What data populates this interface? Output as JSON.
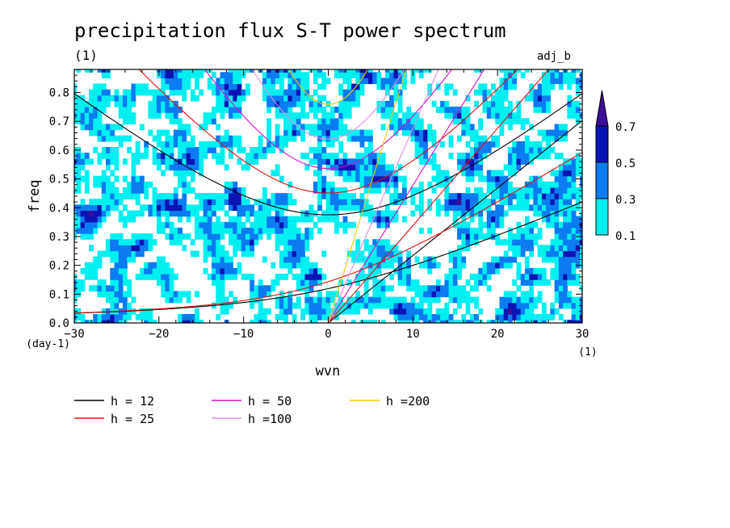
{
  "chart_data": {
    "type": "heatmap",
    "title": "precipitation flux S-T power spectrum",
    "subtitle_left": "(1)",
    "subtitle_right": "adj_b",
    "xlabel": "wvn",
    "ylabel": "freq",
    "x_unit": "(1)",
    "y_unit": "(day-1)",
    "xlim": [
      -30,
      30
    ],
    "ylim": [
      0,
      0.88
    ],
    "x_ticks": [
      -30,
      -20,
      -10,
      0,
      10,
      20,
      30
    ],
    "x_tick_labels": [
      "−30",
      "−20",
      "−10",
      "0",
      "10",
      "20",
      "30"
    ],
    "y_ticks": [
      0.0,
      0.1,
      0.2,
      0.3,
      0.4,
      0.5,
      0.6,
      0.7,
      0.8
    ],
    "y_tick_labels": [
      "0.0",
      "0.1",
      "0.2",
      "0.3",
      "0.4",
      "0.5",
      "0.6",
      "0.7",
      "0.8"
    ],
    "contour_levels": [
      0.1,
      0.3,
      0.5,
      0.7
    ],
    "colorbar_labels": [
      "0.1",
      "0.3",
      "0.5",
      "0.7"
    ],
    "colorbar_colors": [
      "#00f0f0",
      "#0a7bf0",
      "#0a14b4",
      "#3b0e96"
    ],
    "dispersion_curves": [
      {
        "name": "h = 12",
        "h": 12,
        "color": "#000000"
      },
      {
        "name": "h = 25",
        "h": 25,
        "color": "#e01010"
      },
      {
        "name": "h = 50",
        "h": 50,
        "color": "#d010c8"
      },
      {
        "name": "h =100",
        "h": 100,
        "color": "#dc90e0"
      },
      {
        "name": "h =200",
        "h": 200,
        "color": "#f0c810"
      }
    ],
    "grid": false,
    "legend_position": "bottom-left"
  }
}
